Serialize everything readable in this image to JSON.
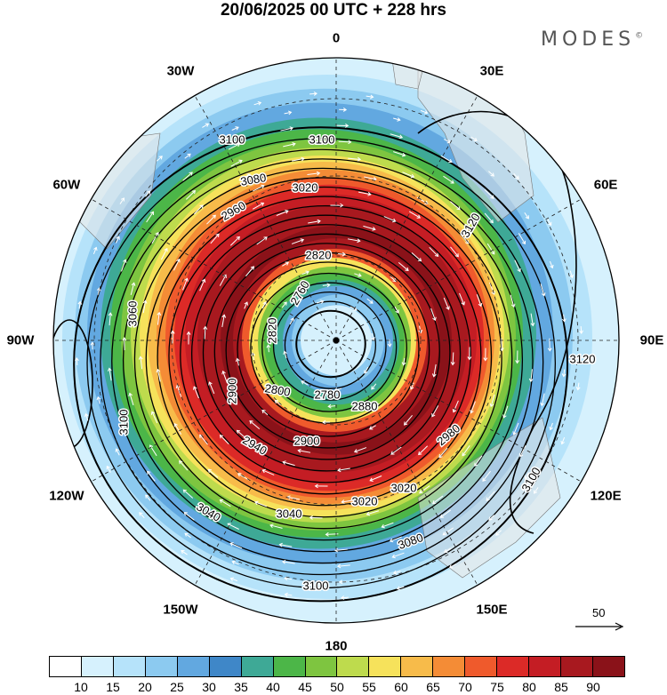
{
  "title": "20/06/2025  00 UTC  + 228 hrs",
  "brand": "MODES",
  "brand_mark": "©",
  "longitude_labels": [
    "0",
    "30E",
    "60E",
    "90E",
    "120E",
    "150E",
    "180",
    "150W",
    "120W",
    "90W",
    "60W",
    "30W"
  ],
  "contour_labels": [
    "2760",
    "2780",
    "2800",
    "2820",
    "2880",
    "2900",
    "2940",
    "2960",
    "2980",
    "3020",
    "3040",
    "3060",
    "3080",
    "3100",
    "3120"
  ],
  "vector_reference": "50",
  "colorbar": {
    "ticks": [
      "10",
      "15",
      "20",
      "25",
      "30",
      "35",
      "40",
      "45",
      "50",
      "55",
      "60",
      "65",
      "70",
      "75",
      "80",
      "85",
      "90"
    ],
    "colors": [
      "#ffffff",
      "#d6f1fd",
      "#b6e3fa",
      "#8ccaf0",
      "#62a8e0",
      "#3f87c8",
      "#3ea996",
      "#4cb648",
      "#7ec540",
      "#bedb4d",
      "#f6e25b",
      "#f7bb4a",
      "#f48c36",
      "#ef5a2c",
      "#dc2a27",
      "#c41d24",
      "#a8191f",
      "#8a1219"
    ]
  },
  "chart_data": {
    "type": "map",
    "projection": "polar stereographic, South Pole centred",
    "field_shaded": "wind speed",
    "field_contoured": "geopotential height",
    "contour_labels_shown": [
      2760,
      2780,
      2800,
      2820,
      2880,
      2900,
      2940,
      2960,
      2980,
      3020,
      3040,
      3060,
      3080,
      3100,
      3120
    ],
    "colorbar_levels": [
      10,
      15,
      20,
      25,
      30,
      35,
      40,
      45,
      50,
      55,
      60,
      65,
      70,
      75,
      80,
      85,
      90
    ]
  }
}
